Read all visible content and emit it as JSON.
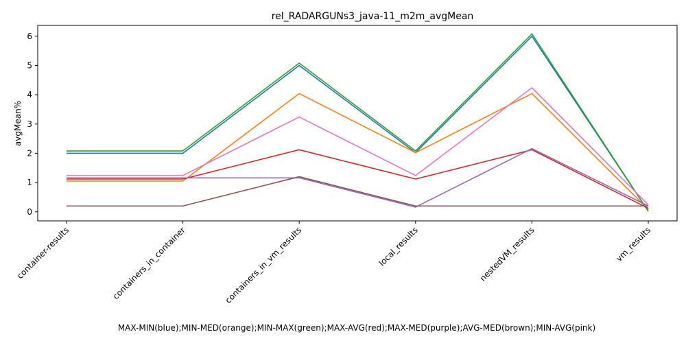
{
  "chart_data": {
    "type": "line",
    "title": "rel_RADARGUNs3_java-11_m2m_avgMean",
    "xlabel": "MAX-MIN(blue);MIN-MED(orange);MIN-MAX(green);MAX-AVG(red);MAX-MED(purple);AVG-MED(brown);MIN-AVG(pink)",
    "ylabel": "avgMean%",
    "categories": [
      "container-results",
      "containers_in_container",
      "containers_in_vm_results",
      "local_results",
      "nestedVM_results",
      "vm_results"
    ],
    "ylim": [
      -0.31,
      6.37
    ],
    "yticks": [
      0,
      1,
      2,
      3,
      4,
      5,
      6
    ],
    "grid": false,
    "series": [
      {
        "color": "#1f77b4",
        "values": [
          2.0,
          2.0,
          5.0,
          2.02,
          6.0,
          0.02
        ]
      },
      {
        "color": "#ff7f0e",
        "values": [
          1.05,
          1.05,
          4.04,
          2.02,
          4.04,
          0.08
        ]
      },
      {
        "color": "#2ca02c",
        "values": [
          2.08,
          2.08,
          5.08,
          2.08,
          6.08,
          0.02
        ]
      },
      {
        "color": "#d62728",
        "values": [
          1.12,
          1.12,
          2.12,
          1.12,
          2.12,
          0.12
        ]
      },
      {
        "color": "#9467bd",
        "values": [
          1.16,
          1.16,
          1.16,
          0.16,
          2.16,
          0.2
        ]
      },
      {
        "color": "#8c564b",
        "values": [
          0.2,
          0.2,
          1.2,
          0.2,
          0.2,
          0.2
        ]
      },
      {
        "color": "#e377c2",
        "values": [
          1.24,
          1.24,
          3.24,
          1.24,
          4.24,
          0.24
        ]
      }
    ]
  }
}
